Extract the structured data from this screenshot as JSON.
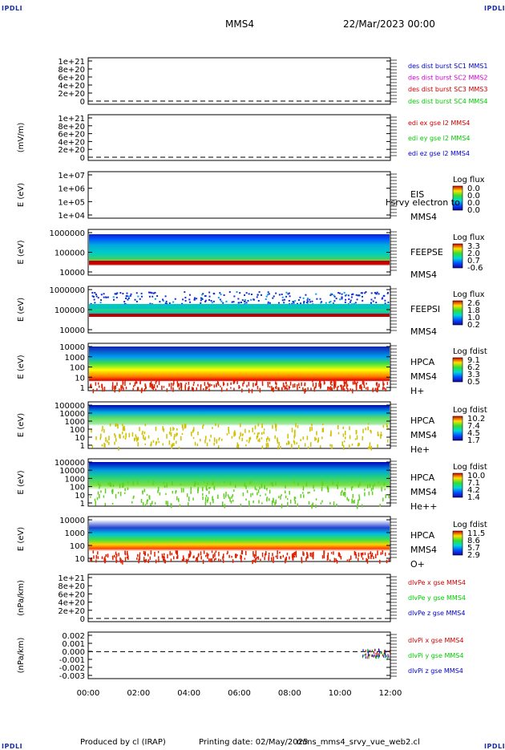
{
  "header": {
    "corner_left": "IPDLI",
    "corner_right": "IPDLI",
    "spacecraft": "MMS4",
    "date": "22/Mar/2023 00:00",
    "corner_bottom_left": "IPDLI",
    "corner_bottom_right": "IPDLI"
  },
  "footer": {
    "produced": "Produced by cl (IRAP)",
    "printing_date": "Printing date: 02/May/2025",
    "script": "mms_mms4_srvy_vue_web2.cl"
  },
  "colors": {
    "blue": "#0000cc",
    "magenta": "#cc00cc",
    "red": "#cc0000",
    "green": "#00cc00",
    "corner": "#1a2ea8"
  },
  "chart_data": [
    {
      "type": "line",
      "ylabel": "",
      "yticks": [
        "1e+21",
        "8e+20",
        "6e+20",
        "4e+20",
        "2e+20",
        "0"
      ],
      "legend": [
        {
          "label": "des dist burst SC1 MMS1",
          "color": "#0000cc"
        },
        {
          "label": "des dist burst SC2 MMS2",
          "color": "#cc00cc"
        },
        {
          "label": "des dist burst SC3 MMS3",
          "color": "#cc0000"
        },
        {
          "label": "des dist burst SC4 MMS4",
          "color": "#00cc00"
        }
      ],
      "zero_line": true
    },
    {
      "type": "line",
      "ylabel": "(mV/m)",
      "yticks": [
        "1e+21",
        "8e+20",
        "6e+20",
        "4e+20",
        "2e+20",
        "0"
      ],
      "legend": [
        {
          "label": "edi ex gse l2 MMS4",
          "color": "#cc0000"
        },
        {
          "label": "edi ey gse l2 MMS4",
          "color": "#00cc00"
        },
        {
          "label": "edi ez gse l2 MMS4",
          "color": "#0000cc"
        }
      ],
      "zero_line": true
    },
    {
      "type": "heatmap",
      "ylabel": "E (eV)",
      "yticks": [
        "1e+07",
        "1e+06",
        "1e+05",
        "1e+04"
      ],
      "labels": [
        "EIS",
        "MMS4"
      ],
      "overlay": "l srvy electron to",
      "cbar_title": "Log flux",
      "cbar_ticks": [
        "0.0",
        "0.0",
        "0.0",
        "0.0"
      ]
    },
    {
      "type": "heatmap",
      "ylabel": "E (eV)",
      "yticks": [
        "1000000",
        "100000",
        "10000"
      ],
      "labels": [
        "FEEPSE",
        "MMS4"
      ],
      "cbar_title": "Log flux",
      "cbar_ticks": [
        "3.3",
        "2.0",
        "0.7",
        "-0.6"
      ]
    },
    {
      "type": "heatmap",
      "ylabel": "E (eV)",
      "yticks": [
        "1000000",
        "100000",
        "10000"
      ],
      "labels": [
        "FEEPSI",
        "MMS4"
      ],
      "cbar_title": "Log flux",
      "cbar_ticks": [
        "2.6",
        "1.8",
        "1.0",
        "0.2"
      ]
    },
    {
      "type": "heatmap",
      "ylabel": "E (eV)",
      "yticks": [
        "10000",
        "1000",
        "100",
        "10",
        "1"
      ],
      "labels": [
        "HPCA",
        "MMS4",
        "H+"
      ],
      "cbar_title": "Log fdist",
      "cbar_ticks": [
        "9.1",
        "6.2",
        "3.3",
        "0.5"
      ]
    },
    {
      "type": "heatmap",
      "ylabel": "E (eV)",
      "yticks": [
        "100000",
        "10000",
        "1000",
        "100",
        "10",
        "1"
      ],
      "labels": [
        "HPCA",
        "MMS4",
        "He+"
      ],
      "cbar_title": "Log fdist",
      "cbar_ticks": [
        "10.2",
        "7.4",
        "4.5",
        "1.7"
      ]
    },
    {
      "type": "heatmap",
      "ylabel": "E (eV)",
      "yticks": [
        "100000",
        "10000",
        "1000",
        "100",
        "10",
        "1"
      ],
      "labels": [
        "HPCA",
        "MMS4",
        "He++"
      ],
      "cbar_title": "Log fdist",
      "cbar_ticks": [
        "10.0",
        "7.1",
        "4.2",
        "1.4"
      ]
    },
    {
      "type": "heatmap",
      "ylabel": "E (eV)",
      "yticks": [
        "10000",
        "1000",
        "100",
        "10"
      ],
      "labels": [
        "HPCA",
        "MMS4",
        "O+"
      ],
      "cbar_title": "Log fdist",
      "cbar_ticks": [
        "11.5",
        "8.6",
        "5.7",
        "2.9"
      ]
    },
    {
      "type": "line",
      "ylabel": "(nPa/km)",
      "yticks": [
        "1e+21",
        "8e+20",
        "6e+20",
        "4e+20",
        "2e+20",
        "0"
      ],
      "legend": [
        {
          "label": "dlvPe x gse MMS4",
          "color": "#cc0000"
        },
        {
          "label": "dlvPe y gse MMS4",
          "color": "#00cc00"
        },
        {
          "label": "dlvPe z gse MMS4",
          "color": "#0000cc"
        }
      ],
      "zero_line": true
    },
    {
      "type": "line",
      "ylabel": "(nPa/km)",
      "yticks": [
        "0.002",
        "0.001",
        "0.000",
        "-0.001",
        "-0.002",
        "-0.003"
      ],
      "legend": [
        {
          "label": "dlvPi x gse MMS4",
          "color": "#cc0000"
        },
        {
          "label": "dlvPi y gse MMS4",
          "color": "#00cc00"
        },
        {
          "label": "dlvPi z gse MMS4",
          "color": "#0000cc"
        }
      ],
      "zero_line": true
    }
  ],
  "xaxis": {
    "ticks": [
      "00:00",
      "02:00",
      "04:00",
      "06:00",
      "08:00",
      "10:00",
      "12:00"
    ]
  }
}
